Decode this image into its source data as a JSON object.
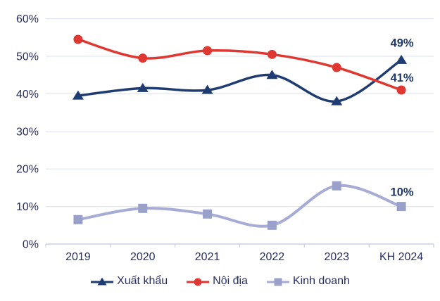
{
  "chart_data": {
    "type": "line",
    "title": "",
    "xlabel": "",
    "ylabel": "",
    "categories": [
      "2019",
      "2020",
      "2021",
      "2022",
      "2023",
      "KH 2024"
    ],
    "series": [
      {
        "name": "Xuất khẩu",
        "color": "#1f3c72",
        "marker": "triangle",
        "values": [
          39.5,
          41.5,
          41,
          45,
          38,
          49
        ],
        "end_label": "49%"
      },
      {
        "name": "Nội địa",
        "color": "#df3832",
        "marker": "circle",
        "values": [
          54.5,
          49.5,
          51.5,
          50.5,
          47,
          41
        ],
        "end_label": "41%"
      },
      {
        "name": "Kinh doanh",
        "color": "#a6acd5",
        "marker": "square",
        "marker_color": "#99a1cb",
        "values": [
          6.5,
          9.5,
          8,
          5,
          15.5,
          10
        ],
        "end_label": "10%"
      }
    ],
    "ylim": [
      0,
      60
    ],
    "ytick_step": 10,
    "ytick_labels": [
      "0%",
      "10%",
      "20%",
      "30%",
      "40%",
      "50%",
      "60%"
    ],
    "grid": "horizontal gridlines on",
    "legend_position": "bottom",
    "colors": {
      "grid": "#e2e6f4",
      "axis": "#c9cee4",
      "tick_label": "#272e60",
      "data_label": "#1f3864"
    }
  }
}
